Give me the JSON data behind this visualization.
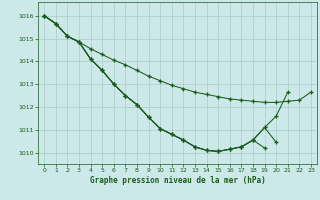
{
  "background_color": "#cce8e8",
  "grid_color": "#aacccc",
  "line_color": "#1a5c1a",
  "xlabel": "Graphe pression niveau de la mer (hPa)",
  "xlim_min": -0.5,
  "xlim_max": 23.5,
  "ylim_min": 1009.5,
  "ylim_max": 1016.6,
  "yticks": [
    1010,
    1011,
    1012,
    1013,
    1014,
    1015,
    1016
  ],
  "xticks": [
    0,
    1,
    2,
    3,
    4,
    5,
    6,
    7,
    8,
    9,
    10,
    11,
    12,
    13,
    14,
    15,
    16,
    17,
    18,
    19,
    20,
    21,
    22,
    23
  ],
  "series": [
    {
      "x": [
        0,
        1,
        2,
        3,
        4,
        5,
        6,
        7,
        8,
        9,
        10,
        11,
        12,
        13,
        14,
        15,
        16,
        17,
        18,
        19,
        20,
        21,
        22,
        23
      ],
      "y": [
        1016.0,
        1015.65,
        1015.1,
        1014.85,
        1014.55,
        1014.3,
        1014.05,
        1013.85,
        1013.6,
        1013.35,
        1013.15,
        1012.95,
        1012.8,
        1012.65,
        1012.55,
        1012.45,
        1012.35,
        1012.3,
        1012.25,
        1012.2,
        1012.2,
        1012.25,
        1012.3,
        1012.65
      ]
    },
    {
      "x": [
        0,
        1,
        2,
        3,
        4,
        5,
        6,
        7,
        8,
        9,
        10,
        11,
        12,
        13,
        14,
        15,
        16,
        17,
        18,
        19,
        20,
        21
      ],
      "y": [
        1016.0,
        1015.65,
        1015.1,
        1014.85,
        1014.1,
        1013.6,
        1013.0,
        1012.5,
        1012.1,
        1011.55,
        1011.05,
        1010.8,
        1010.55,
        1010.25,
        1010.1,
        1010.05,
        1010.15,
        1010.25,
        1010.55,
        1011.1,
        1011.6,
        1012.65
      ]
    },
    {
      "x": [
        0,
        1,
        2,
        3,
        4,
        5,
        6,
        7,
        8,
        9,
        10,
        11,
        12,
        13,
        14,
        15,
        16,
        17,
        18,
        19,
        20
      ],
      "y": [
        1016.0,
        1015.65,
        1015.1,
        1014.85,
        1014.1,
        1013.6,
        1013.0,
        1012.5,
        1012.1,
        1011.55,
        1011.05,
        1010.8,
        1010.55,
        1010.25,
        1010.1,
        1010.05,
        1010.15,
        1010.25,
        1010.55,
        1011.1,
        1010.45
      ]
    },
    {
      "x": [
        0,
        1,
        2,
        3,
        4,
        5,
        6,
        7,
        8,
        9,
        10,
        11,
        12,
        13,
        14,
        15,
        16,
        17,
        18,
        19
      ],
      "y": [
        1016.0,
        1015.65,
        1015.1,
        1014.85,
        1014.1,
        1013.6,
        1013.0,
        1012.5,
        1012.1,
        1011.55,
        1011.05,
        1010.8,
        1010.55,
        1010.25,
        1010.1,
        1010.05,
        1010.15,
        1010.25,
        1010.55,
        1010.2
      ]
    }
  ]
}
